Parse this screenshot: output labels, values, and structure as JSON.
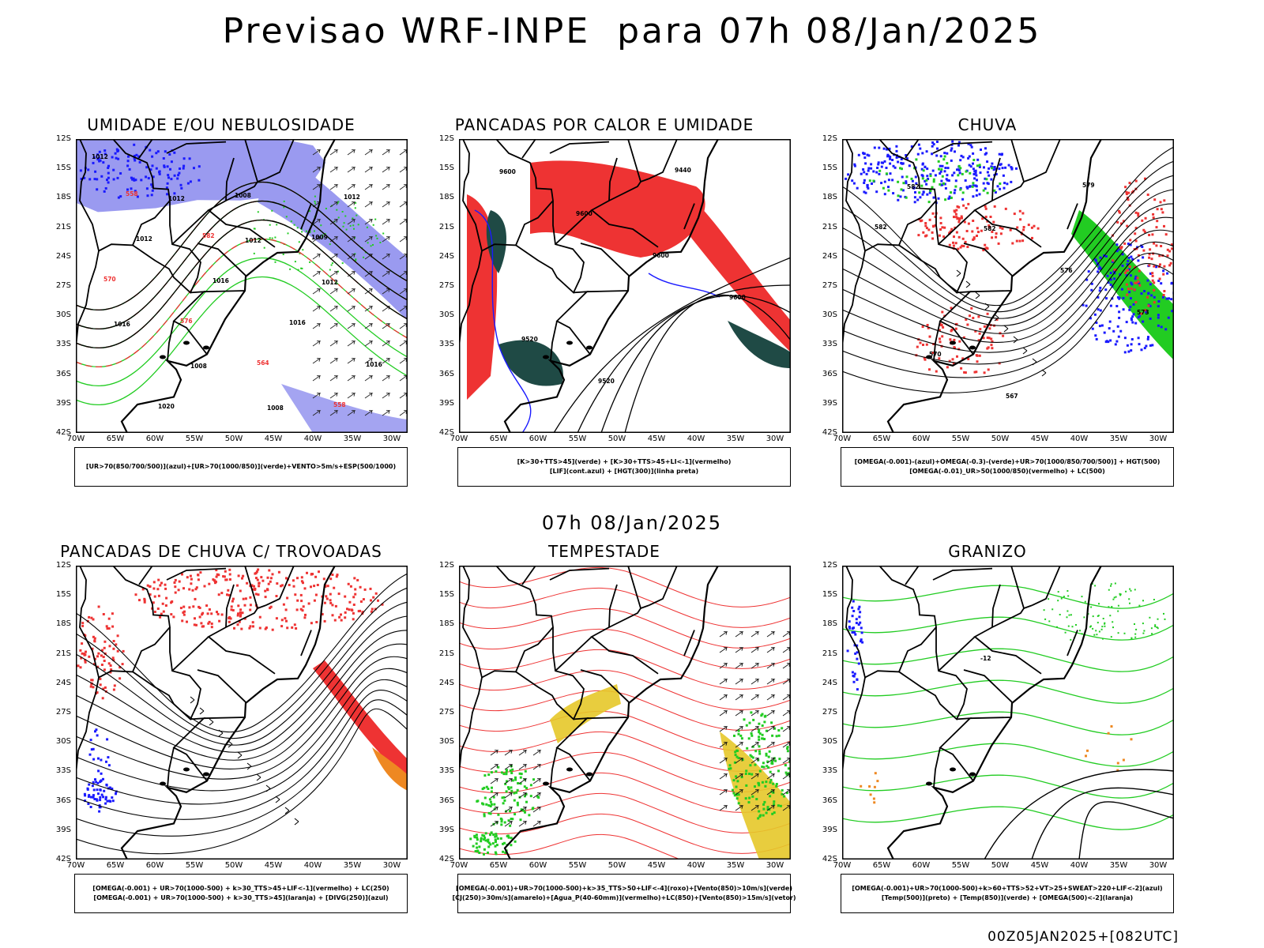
{
  "title": "Previsao WRF-INPE  para 07h 08/Jan/2025",
  "subtitle_mid": "07h 08/Jan/2025",
  "footer": "00Z05JAN2025+[082UTC]",
  "axes": {
    "lat_labels": [
      "12S",
      "15S",
      "18S",
      "21S",
      "24S",
      "27S",
      "30S",
      "33S",
      "36S",
      "39S",
      "42S"
    ],
    "lon_labels": [
      "70W",
      "65W",
      "60W",
      "55W",
      "50W",
      "45W",
      "40W",
      "35W",
      "30W"
    ]
  },
  "colors": {
    "blue_light": "#9a9af0",
    "blue": "#1a1aff",
    "green": "#22cc22",
    "red": "#ee3333",
    "dark_teal": "#1f4a45",
    "orange": "#ee8822",
    "yellow": "#e6c829",
    "black": "#000000"
  },
  "panels": [
    {
      "id": "umidade",
      "title": "UMIDADE E/OU NEBULOSIDADE",
      "legend": [
        "[UR>70(850/700/500)](azul)+[UR>70(1000/850)](verde)+VENTO>5m/s+ESP(500/1000)"
      ],
      "contour_labels": [
        "1012",
        "1012",
        "1012",
        "1012",
        "1016",
        "1008",
        "1008",
        "1012",
        "1012",
        "1016",
        "1016",
        "1016",
        "1020",
        "1008",
        "1009",
        "570",
        "576",
        "564",
        "558",
        "558",
        "582"
      ]
    },
    {
      "id": "pancadas_calor",
      "title": "PANCADAS POR CALOR E UMIDADE",
      "legend": [
        "[K>30+TTS>45](verde) + [K>30+TTS>45+LI<-1](vermelho)",
        "[LIF](cont.azul) + [HGT(300)](linha preta)"
      ],
      "contour_labels": [
        "9600",
        "9600",
        "9600",
        "9600",
        "9520",
        "9520",
        "9440"
      ]
    },
    {
      "id": "chuva",
      "title": "CHUVA",
      "legend": [
        "[OMEGA(-0.001)-(azul)+OMEGA(-0.3)-(verde)+UR>70(1000/850/700/500)] + HGT(500)",
        "[OMEGA(-0.01)_UR>50(1000/850)(vermelho) + LC(500)"
      ],
      "contour_labels": [
        "582",
        "582",
        "576",
        "573",
        "570",
        "567",
        "579",
        "582"
      ]
    },
    {
      "id": "trovoadas",
      "title": "PANCADAS DE CHUVA C/ TROVOADAS",
      "legend": [
        "[OMEGA(-0.001) + UR>70(1000-500) + k>30_TTS>45+LIF<-1](vermelho) + LC(250)",
        "[OMEGA(-0.001) + UR>70(1000-500) + k>30_TTS>45](laranja) + [DIVG(250)](azul)"
      ],
      "contour_labels": []
    },
    {
      "id": "tempestade",
      "title": "TEMPESTADE",
      "legend": [
        "[OMEGA(-0.001)+UR>70(1000-500)+k>35_TTS>50+LIF<-4](roxo)+[Vento(850)>10m/s](verde)",
        "[CJ(250)>30m/s](amarelo)+[Agua_P(40-60mm)](vermelho)+LC(850)+[Vento(850)>15m/s](vetor)"
      ],
      "contour_labels": []
    },
    {
      "id": "granizo",
      "title": "GRANIZO",
      "legend": [
        "[OMEGA(-0.001)+UR>70(1000-500)+k>60+TTS>52+VT>25+SWEAT>220+LIF<-2](azul)",
        "[Temp(500)](preto) + [Temp(850)](verde) + [OMEGA(500)<-2](laranja)"
      ],
      "contour_labels": [
        "-12"
      ]
    }
  ]
}
